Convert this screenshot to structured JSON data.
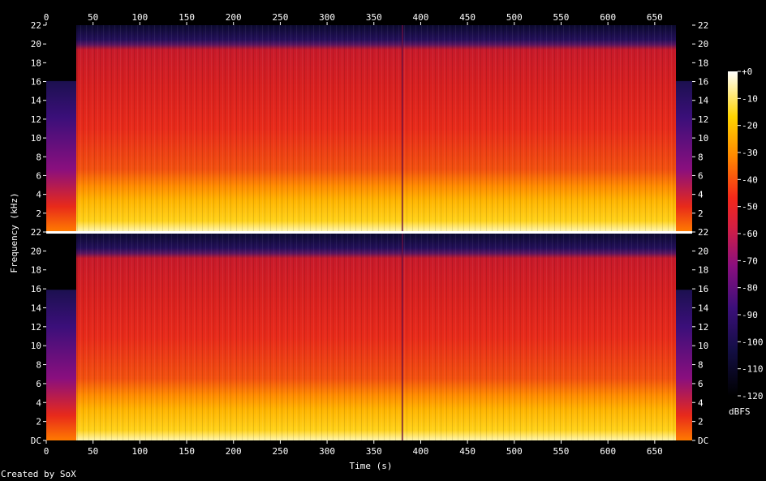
{
  "chart_data": {
    "type": "heatmap",
    "title": "",
    "xlabel": "Time (s)",
    "ylabel": "Frequency (kHz)",
    "xlim": [
      0,
      690
    ],
    "ylim": [
      0,
      22
    ],
    "x_ticks": [
      "0",
      "50",
      "100",
      "150",
      "200",
      "250",
      "300",
      "350",
      "400",
      "450",
      "500",
      "550",
      "600",
      "650"
    ],
    "y_ticks": [
      "DC",
      "2",
      "4",
      "6",
      "8",
      "10",
      "12",
      "14",
      "16",
      "18",
      "20",
      "22"
    ],
    "channels": 2,
    "colorbar": {
      "label": "dBFS",
      "range": [
        -120,
        0
      ],
      "ticks": [
        "+0",
        "-10",
        "-20",
        "-30",
        "-40",
        "-50",
        "-60",
        "-70",
        "-80",
        "-90",
        "-100",
        "-110",
        "-120"
      ]
    }
  },
  "footer": {
    "credit": "Created by SoX"
  }
}
